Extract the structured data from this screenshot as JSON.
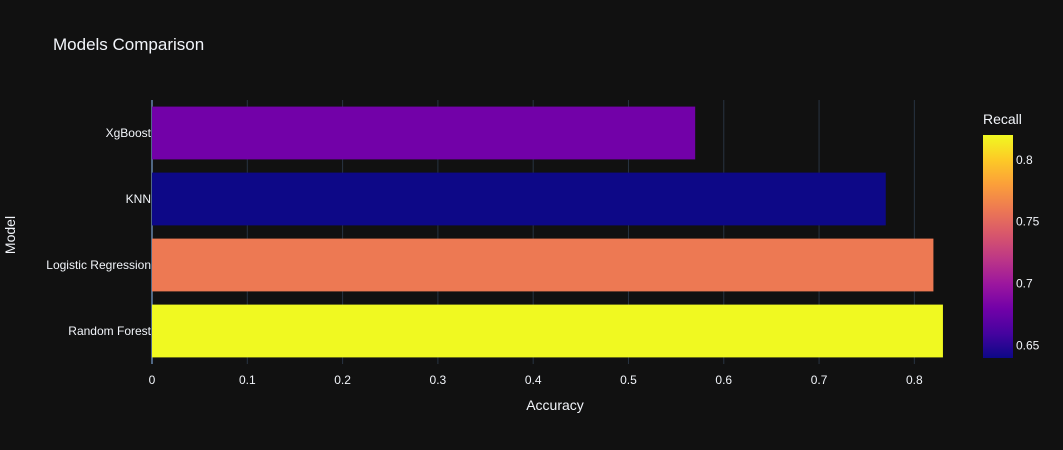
{
  "chart_data": {
    "type": "bar",
    "orientation": "horizontal",
    "title": "Models Comparison",
    "xlabel": "Accuracy",
    "ylabel": "Model",
    "xlim": [
      0,
      0.85
    ],
    "x_ticks": [
      "0",
      "0.1",
      "0.2",
      "0.3",
      "0.4",
      "0.5",
      "0.6",
      "0.7",
      "0.8"
    ],
    "categories": [
      "XgBoost",
      "KNN",
      "Logistic Regression",
      "Random Forest"
    ],
    "values": [
      0.57,
      0.77,
      0.82,
      0.83
    ],
    "color_values": [
      0.68,
      0.64,
      0.76,
      0.82
    ],
    "colorbar": {
      "title": "Recall",
      "range": [
        0.64,
        0.82
      ],
      "ticks": [
        "0.65",
        "0.7",
        "0.75",
        "0.8"
      ],
      "colorscale": [
        "#0d0887",
        "#46039f",
        "#7201a8",
        "#9c179e",
        "#bd3786",
        "#d8576b",
        "#ed7953",
        "#fb9f3a",
        "#fdca26",
        "#f0f921"
      ]
    },
    "grid": true,
    "background": "#111111"
  }
}
